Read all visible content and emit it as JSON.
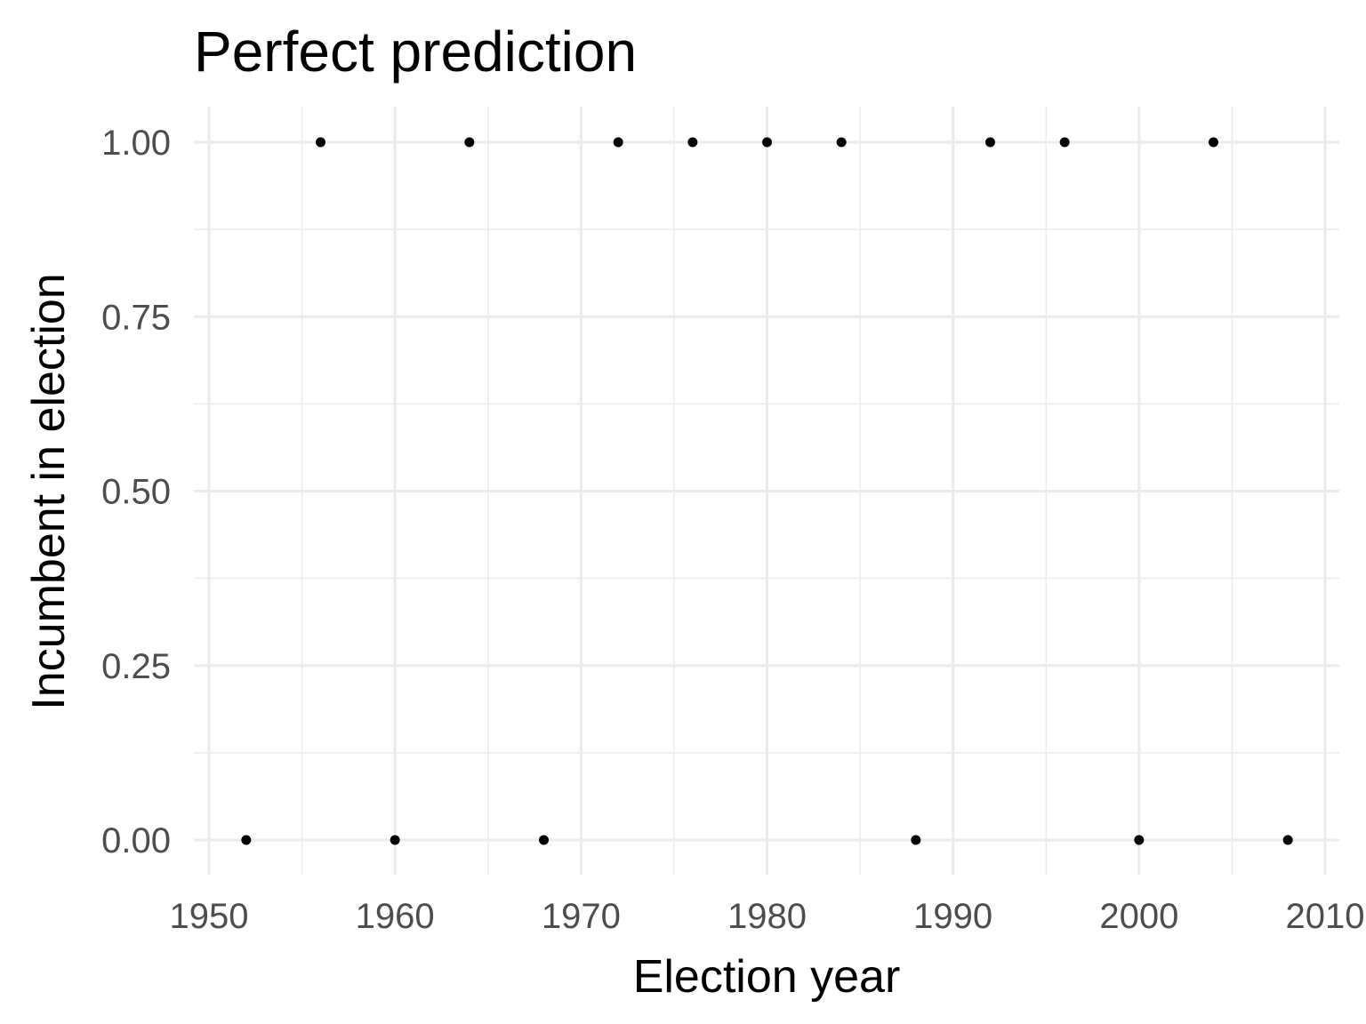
{
  "chart_data": {
    "type": "scatter",
    "title": "Perfect prediction",
    "xlabel": "Election year",
    "ylabel": "Incumbent in election",
    "xlim": [
      1950,
      2010
    ],
    "ylim": [
      -0.05,
      1.05
    ],
    "x_ticks": [
      1950,
      1960,
      1970,
      1980,
      1990,
      2000,
      2010
    ],
    "x_tick_labels": [
      "1950",
      "1960",
      "1970",
      "1980",
      "1990",
      "2000",
      "2010"
    ],
    "y_ticks": [
      0,
      0.25,
      0.5,
      0.75,
      1
    ],
    "y_tick_labels": [
      "0.00",
      "0.25",
      "0.50",
      "0.75",
      "1.00"
    ],
    "grid": true,
    "point_color": "#000000",
    "x": [
      1952,
      1956,
      1960,
      1964,
      1968,
      1972,
      1976,
      1980,
      1984,
      1988,
      1992,
      1996,
      2000,
      2004,
      2008
    ],
    "y": [
      0,
      1,
      0,
      1,
      0,
      1,
      1,
      1,
      1,
      0,
      1,
      1,
      0,
      1,
      0
    ]
  }
}
